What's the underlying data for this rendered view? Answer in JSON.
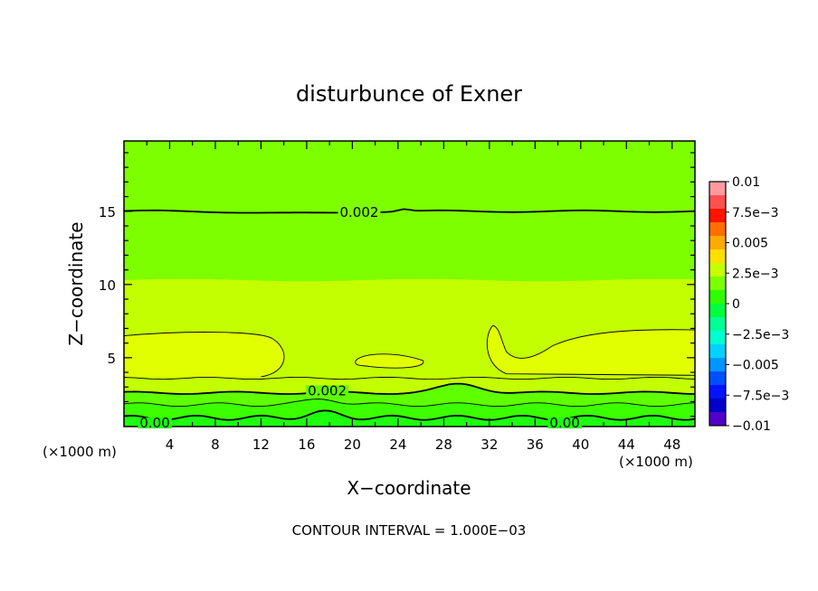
{
  "chart_data": {
    "type": "contour",
    "title": "disturbunce of Exner",
    "xlabel": "X−coordinate",
    "ylabel": "Z−coordinate",
    "x_unit_left": "(×1000 m)",
    "x_unit_right": "(×1000 m)",
    "footer": "CONTOUR INTERVAL = 1.000E−03",
    "xlim": [
      0,
      50
    ],
    "ylim": [
      0.3,
      19.8
    ],
    "x_ticks": [
      4,
      8,
      12,
      16,
      20,
      24,
      28,
      32,
      36,
      40,
      44,
      48
    ],
    "y_ticks": [
      5,
      10,
      15
    ],
    "contour_interval": 0.001,
    "contour_labels": [
      {
        "text": "0.002",
        "x": 20.6,
        "z": 15.0
      },
      {
        "text": "0.002",
        "x": 17.8,
        "z": 2.8
      },
      {
        "text": "0.00",
        "x": 2.7,
        "z": 0.6
      },
      {
        "text": "0.00",
        "x": 38.6,
        "z": 0.6
      }
    ],
    "bands": [
      {
        "z_top": 19.8,
        "z_bottom": 10.3,
        "value_range": [
          0.002,
          0.0025
        ],
        "color": "#7dff00"
      },
      {
        "z_top": 10.3,
        "z_bottom": 4.0,
        "value_range": [
          0.0025,
          0.003
        ],
        "color": "#c3ff00"
      },
      {
        "z_top": 6.6,
        "z_bottom": 3.6,
        "value_range": [
          0.003,
          0.0035
        ],
        "color": "#e1ff00"
      },
      {
        "z_top": 3.6,
        "z_bottom": 2.6,
        "value_range": [
          0.0015,
          0.002
        ],
        "color": "#5fff00"
      },
      {
        "z_top": 2.6,
        "z_bottom": 0.3,
        "value_range": [
          0.0,
          0.0015
        ],
        "color": "#1eff10"
      }
    ],
    "colorbar": {
      "labels": [
        "0.01",
        "7.5e−3",
        "0.005",
        "2.5e−3",
        "0",
        "−2.5e−3",
        "−0.005",
        "−7.5e−3",
        "−0.01"
      ],
      "colors": [
        "#ff9aa0",
        "#ff5050",
        "#ff1400",
        "#ff6e00",
        "#ffaa00",
        "#ffe000",
        "#c8ff00",
        "#7dff00",
        "#2eff00",
        "#00ff3c",
        "#00ff96",
        "#00ffd2",
        "#00d2ff",
        "#0096ff",
        "#0050ff",
        "#0014ff",
        "#0000c8",
        "#5000c8"
      ]
    }
  }
}
